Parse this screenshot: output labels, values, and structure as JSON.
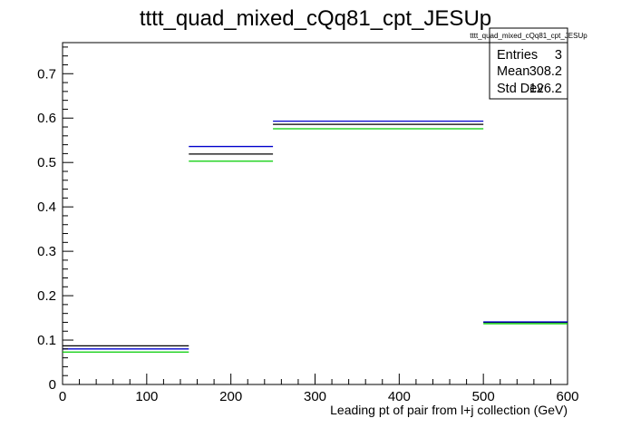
{
  "chart_data": {
    "type": "histogram",
    "title": "tttt_quad_mixed_cQq81_cpt_JESUp",
    "xlabel": "Leading pt of pair from l+j collection (GeV)",
    "ylabel": "",
    "xlim": [
      0,
      600
    ],
    "ylim": [
      0,
      0.77
    ],
    "x_ticks": [
      0,
      100,
      200,
      300,
      400,
      500,
      600
    ],
    "y_ticks": [
      0,
      0.1,
      0.2,
      0.3,
      0.4,
      0.5,
      0.6,
      0.7
    ],
    "bin_edges": [
      0,
      150,
      250,
      500,
      600
    ],
    "series": [
      {
        "color": "#000000",
        "values": [
          0.087,
          0.519,
          0.586,
          0.14
        ]
      },
      {
        "color": "#0000cc",
        "values": [
          0.08,
          0.536,
          0.593,
          0.141
        ]
      },
      {
        "color": "#00cc00",
        "values": [
          0.073,
          0.503,
          0.576,
          0.137
        ]
      }
    ],
    "grid": false,
    "legend": "none",
    "stats_box": {
      "title": "tttt_quad_mixed_cQq81_cpt_JESUp",
      "rows": [
        {
          "label": "Entries",
          "value": "3"
        },
        {
          "label": "Mean",
          "value": "308.2"
        },
        {
          "label": "Std Dev",
          "value": "126.2"
        }
      ]
    }
  }
}
